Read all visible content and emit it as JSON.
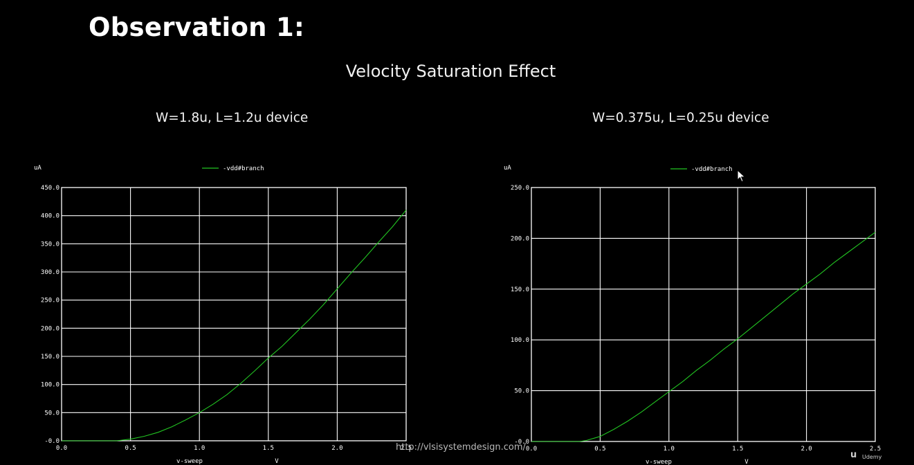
{
  "slide": {
    "title": "Observation 1:",
    "subtitle": "Velocity Saturation Effect",
    "watermark": "http://vlsisystemdesign.com/",
    "brand": "Udemy",
    "cursor_icon": "arrow-pointer-icon"
  },
  "colors": {
    "background": "#000000",
    "grid": "#ffffff",
    "trace": "#22c522",
    "tick_text": "#ffffff"
  },
  "chart_data": [
    {
      "type": "line",
      "title": "W=1.8u, L=1.2u device",
      "ylabel": "uA",
      "xlabel": "v-sweep",
      "xunit": "V",
      "legend": "top-center",
      "grid": true,
      "xlim": [
        0,
        2.5
      ],
      "ylim": [
        0,
        450
      ],
      "x_ticks": [
        "0.0",
        "0.5",
        "1.0",
        "1.5",
        "2.0",
        "2.5"
      ],
      "y_ticks": [
        "-0.0",
        "50.0",
        "100.0",
        "150.0",
        "200.0",
        "250.0",
        "300.0",
        "350.0",
        "400.0",
        "450.0"
      ],
      "series": [
        {
          "name": "-vdd#branch",
          "x": [
            0,
            0.4,
            0.5,
            0.6,
            0.7,
            0.8,
            0.9,
            1.0,
            1.1,
            1.2,
            1.3,
            1.4,
            1.5,
            1.6,
            1.7,
            1.8,
            1.9,
            2.0,
            2.1,
            2.2,
            2.3,
            2.4,
            2.5
          ],
          "y": [
            0,
            0,
            3,
            8,
            15,
            25,
            37,
            50,
            65,
            82,
            102,
            124,
            147,
            168,
            192,
            216,
            242,
            270,
            298,
            325,
            353,
            380,
            410
          ]
        }
      ]
    },
    {
      "type": "line",
      "title": "W=0.375u, L=0.25u device",
      "ylabel": "uA",
      "xlabel": "v-sweep",
      "xunit": "V",
      "legend": "top-center",
      "grid": true,
      "xlim": [
        0,
        2.5
      ],
      "ylim": [
        0,
        250
      ],
      "x_ticks": [
        "0.0",
        "0.5",
        "1.0",
        "1.5",
        "2.0",
        "2.5"
      ],
      "y_ticks": [
        "-0.0",
        "50.0",
        "100.0",
        "150.0",
        "200.0",
        "250.0"
      ],
      "series": [
        {
          "name": "-vdd#branch",
          "x": [
            0,
            0.35,
            0.4,
            0.5,
            0.6,
            0.7,
            0.8,
            0.9,
            1.0,
            1.1,
            1.2,
            1.3,
            1.4,
            1.5,
            1.6,
            1.7,
            1.8,
            1.9,
            2.0,
            2.1,
            2.2,
            2.3,
            2.4,
            2.5
          ],
          "y": [
            0,
            0,
            1,
            5,
            12,
            20,
            29,
            39,
            49,
            59,
            70,
            80,
            91,
            101,
            112,
            123,
            134,
            145,
            155,
            165,
            176,
            186,
            196,
            206
          ]
        }
      ]
    }
  ]
}
